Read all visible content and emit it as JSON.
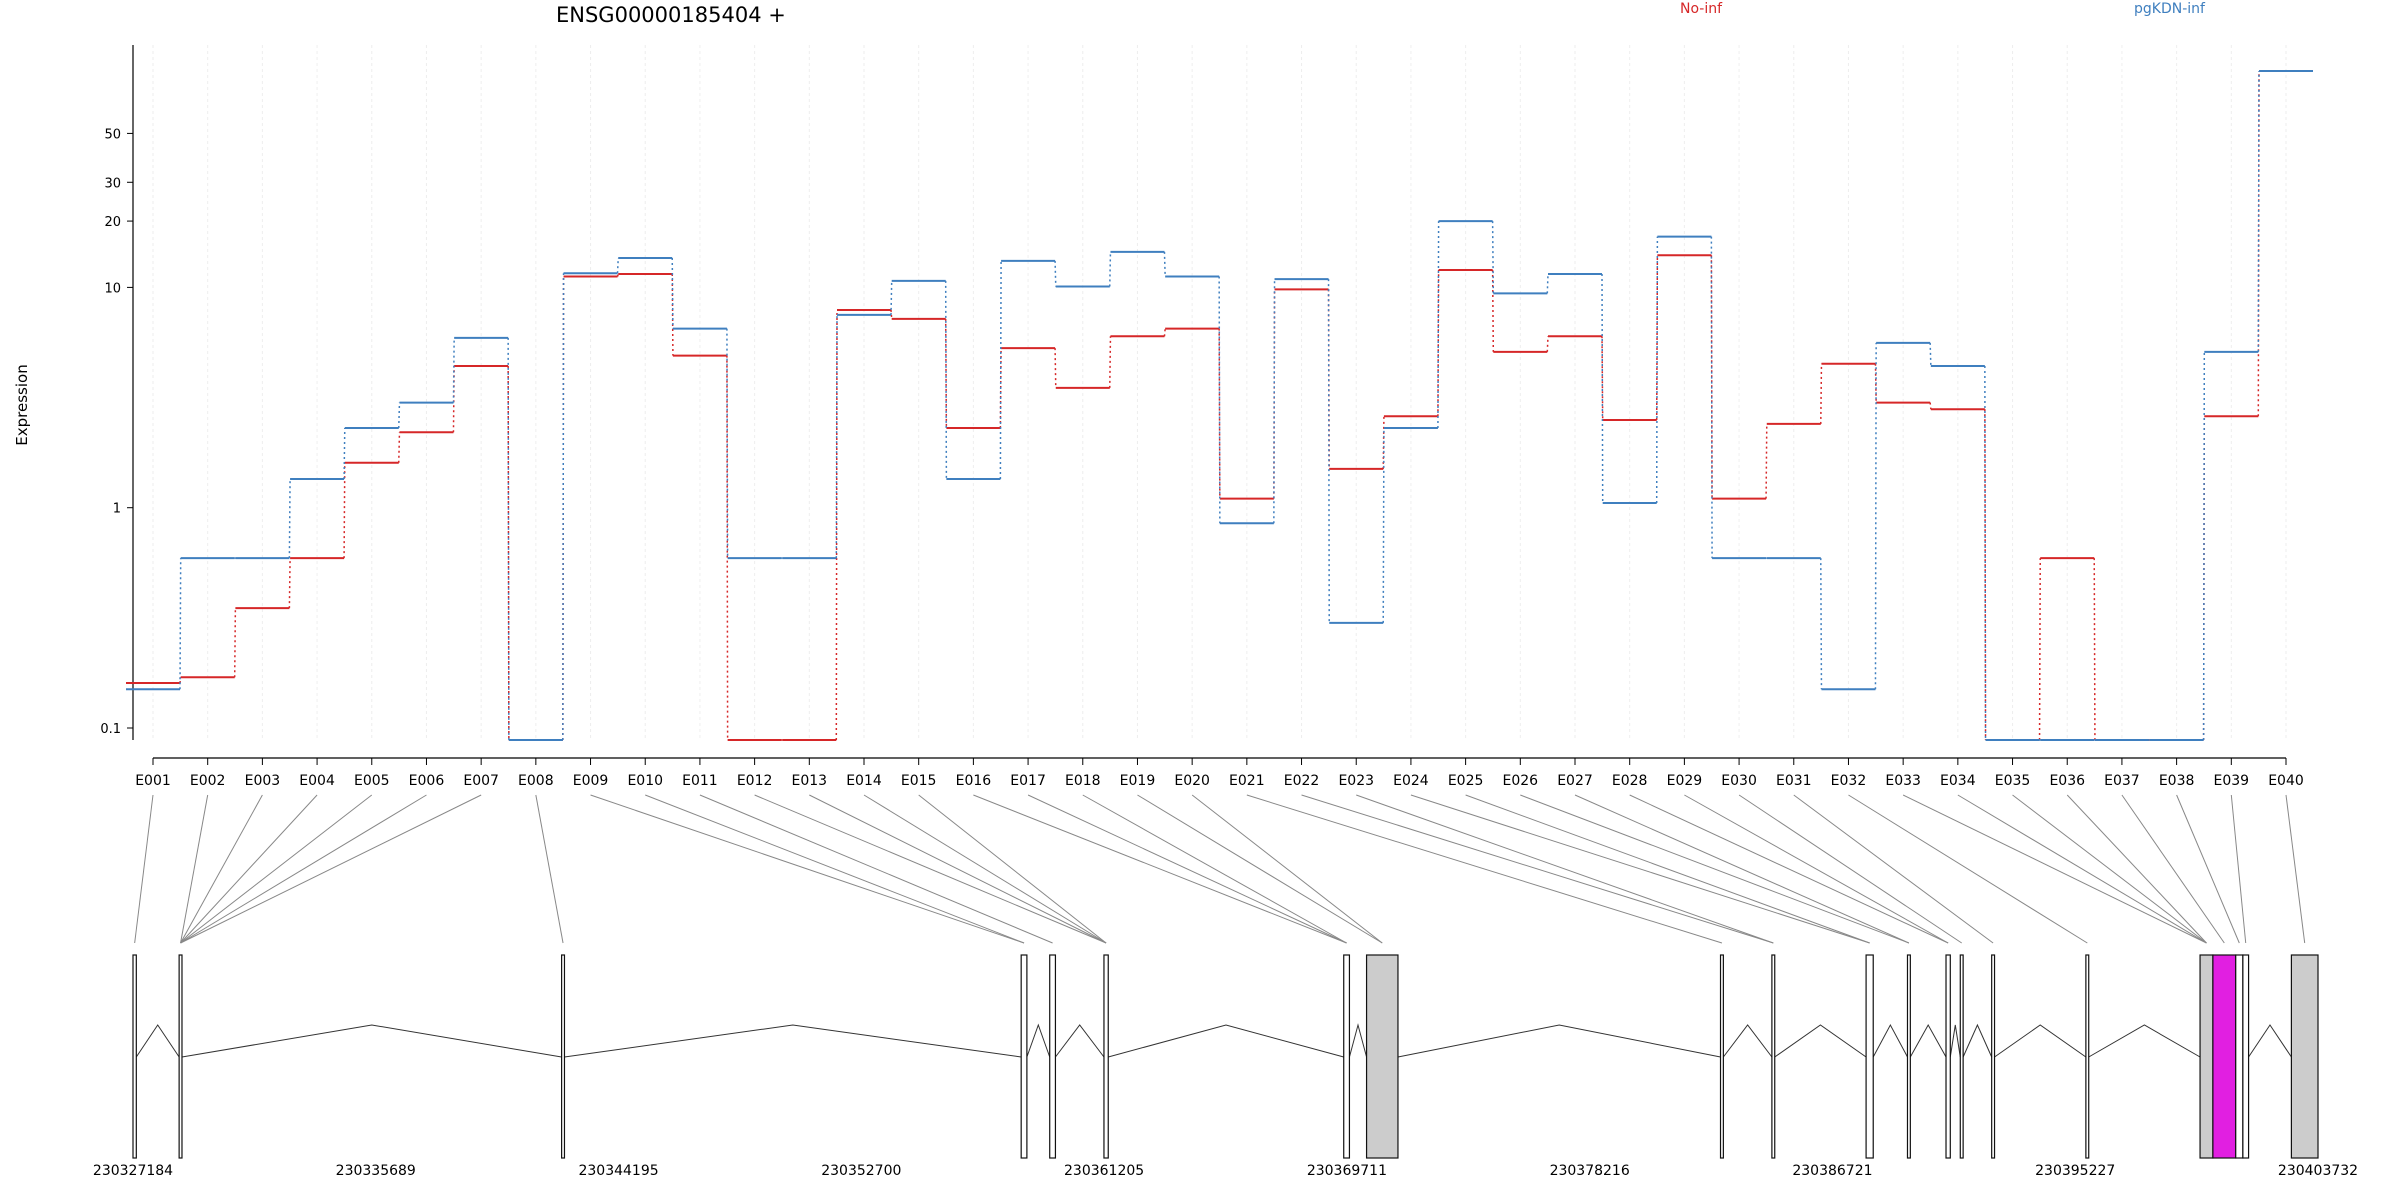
{
  "chart_data": {
    "type": "line",
    "title": "ENSG00000185404 +",
    "ylabel": "Expression",
    "yscale": "log",
    "yticks": [
      0.1,
      1,
      10,
      20,
      30,
      50
    ],
    "grid": "vertical",
    "legend_position": "top-right",
    "categories": [
      "E001",
      "E002",
      "E003",
      "E004",
      "E005",
      "E006",
      "E007",
      "E008",
      "E009",
      "E010",
      "E011",
      "E012",
      "E013",
      "E014",
      "E015",
      "E016",
      "E017",
      "E018",
      "E019",
      "E020",
      "E021",
      "E022",
      "E023",
      "E024",
      "E025",
      "E026",
      "E027",
      "E028",
      "E029",
      "E030",
      "E031",
      "E032",
      "E033",
      "E034",
      "E035",
      "E036",
      "E037",
      "E038",
      "E039",
      "E040"
    ],
    "series": [
      {
        "name": "No-inf",
        "color": "#d62728",
        "values": [
          0.16,
          0.17,
          0.35,
          0.59,
          1.6,
          2.2,
          4.4,
          0,
          11.2,
          11.5,
          4.9,
          0,
          0,
          7.9,
          7.2,
          2.3,
          5.3,
          3.5,
          6.0,
          6.5,
          1.1,
          9.8,
          1.5,
          2.6,
          12.0,
          5.1,
          6.0,
          2.5,
          14.0,
          1.1,
          2.4,
          4.5,
          3.0,
          2.8,
          0,
          0.59,
          0,
          0,
          2.6,
          96
        ]
      },
      {
        "name": "pgKDN-inf",
        "color": "#3f7fbf",
        "values": [
          0.15,
          0.59,
          0.59,
          1.35,
          2.3,
          3.0,
          5.9,
          0,
          11.6,
          13.6,
          6.5,
          0.59,
          0.59,
          7.5,
          10.7,
          1.35,
          13.2,
          10.1,
          14.5,
          11.2,
          0.85,
          10.9,
          0.3,
          2.3,
          20.0,
          9.4,
          11.5,
          1.05,
          17.0,
          0.59,
          0.59,
          0.15,
          5.6,
          4.4,
          0,
          0,
          0,
          0,
          5.1,
          96
        ]
      }
    ],
    "genome_coordinates": [
      230327184,
      230335689,
      230344195,
      230352700,
      230361205,
      230369711,
      230378216,
      230386721,
      230395227,
      230403732
    ],
    "exons": [
      [
        230327184,
        230327300
      ],
      [
        230328800,
        230328900
      ],
      [
        230342200,
        230342300
      ],
      [
        230358300,
        230358500
      ],
      [
        230359300,
        230359500
      ],
      [
        230361200,
        230361350
      ],
      [
        230369600,
        230369800
      ],
      [
        230370400,
        230371500
      ],
      [
        230382800,
        230382900
      ],
      [
        230384600,
        230384700
      ],
      [
        230387900,
        230388150
      ],
      [
        230389350,
        230389450
      ],
      [
        230390700,
        230390850
      ],
      [
        230391200,
        230391300
      ],
      [
        230392300,
        230392400
      ],
      [
        230395600,
        230395700
      ],
      [
        230399600,
        230400050
      ],
      [
        230400050,
        230400850
      ],
      [
        230400850,
        230401100
      ],
      [
        230401100,
        230401300
      ],
      [
        230402800,
        230403732
      ]
    ],
    "highlight_exon": [
      230400050,
      230400850
    ],
    "highlight_color": "#e11fe1",
    "exon_map": [
      0,
      1,
      1,
      1,
      1,
      1,
      1,
      2,
      3,
      3,
      4,
      5,
      5,
      5,
      5,
      6,
      6,
      6,
      7,
      7,
      8,
      9,
      9,
      10,
      10,
      11,
      11,
      12,
      12,
      13,
      14,
      15,
      16,
      16,
      16,
      16,
      17,
      18,
      19,
      20
    ]
  }
}
